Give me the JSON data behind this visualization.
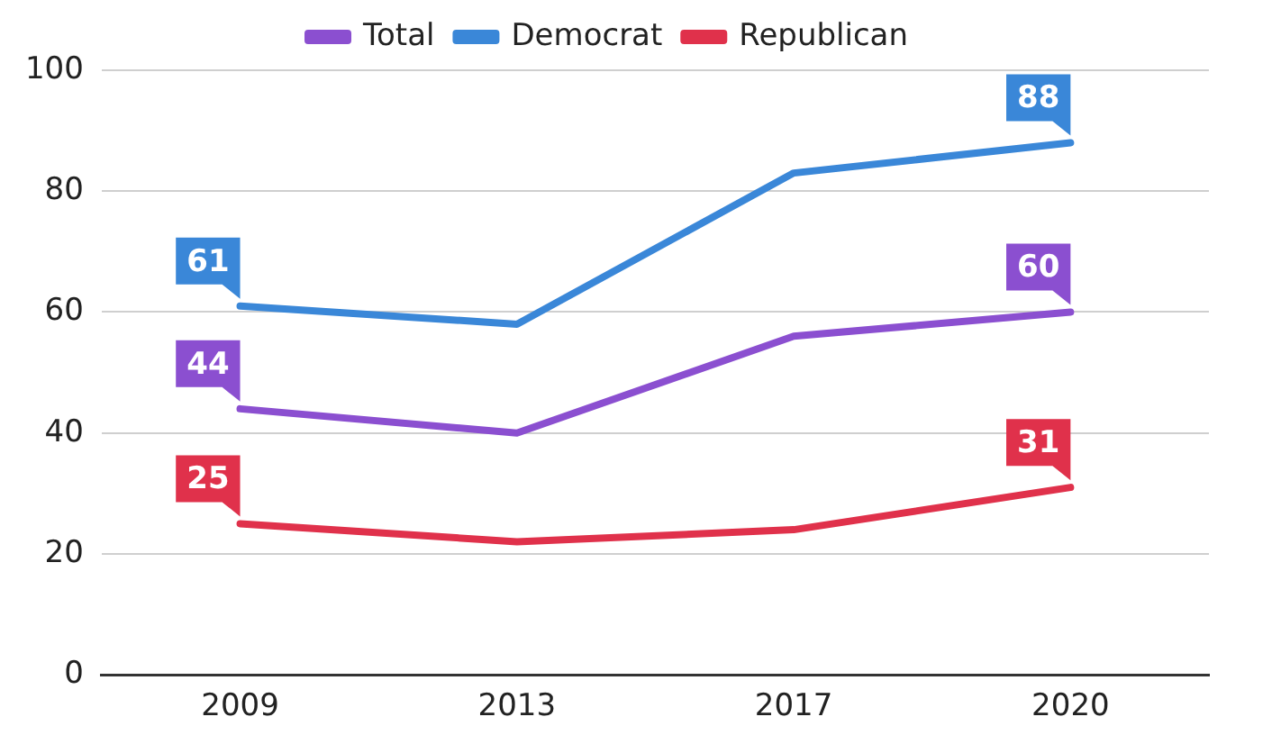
{
  "chart_data": {
    "type": "line",
    "categories": [
      "2009",
      "2013",
      "2017",
      "2020"
    ],
    "series": [
      {
        "name": "Total",
        "color": "#8b4fd0",
        "values": [
          44,
          40,
          56,
          60
        ],
        "value_labels": [
          "44",
          null,
          null,
          "60"
        ]
      },
      {
        "name": "Democrat",
        "color": "#3a87d8",
        "values": [
          61,
          58,
          83,
          88
        ],
        "value_labels": [
          "61",
          null,
          null,
          "88"
        ]
      },
      {
        "name": "Republican",
        "color": "#e0314b",
        "values": [
          25,
          22,
          24,
          31
        ],
        "value_labels": [
          "25",
          null,
          null,
          "31"
        ]
      }
    ],
    "ylim": [
      0,
      100
    ],
    "yticks": [
      0,
      20,
      40,
      60,
      80,
      100
    ],
    "grid": "y",
    "legend": "top",
    "marker": "none",
    "line_style": "solid"
  }
}
